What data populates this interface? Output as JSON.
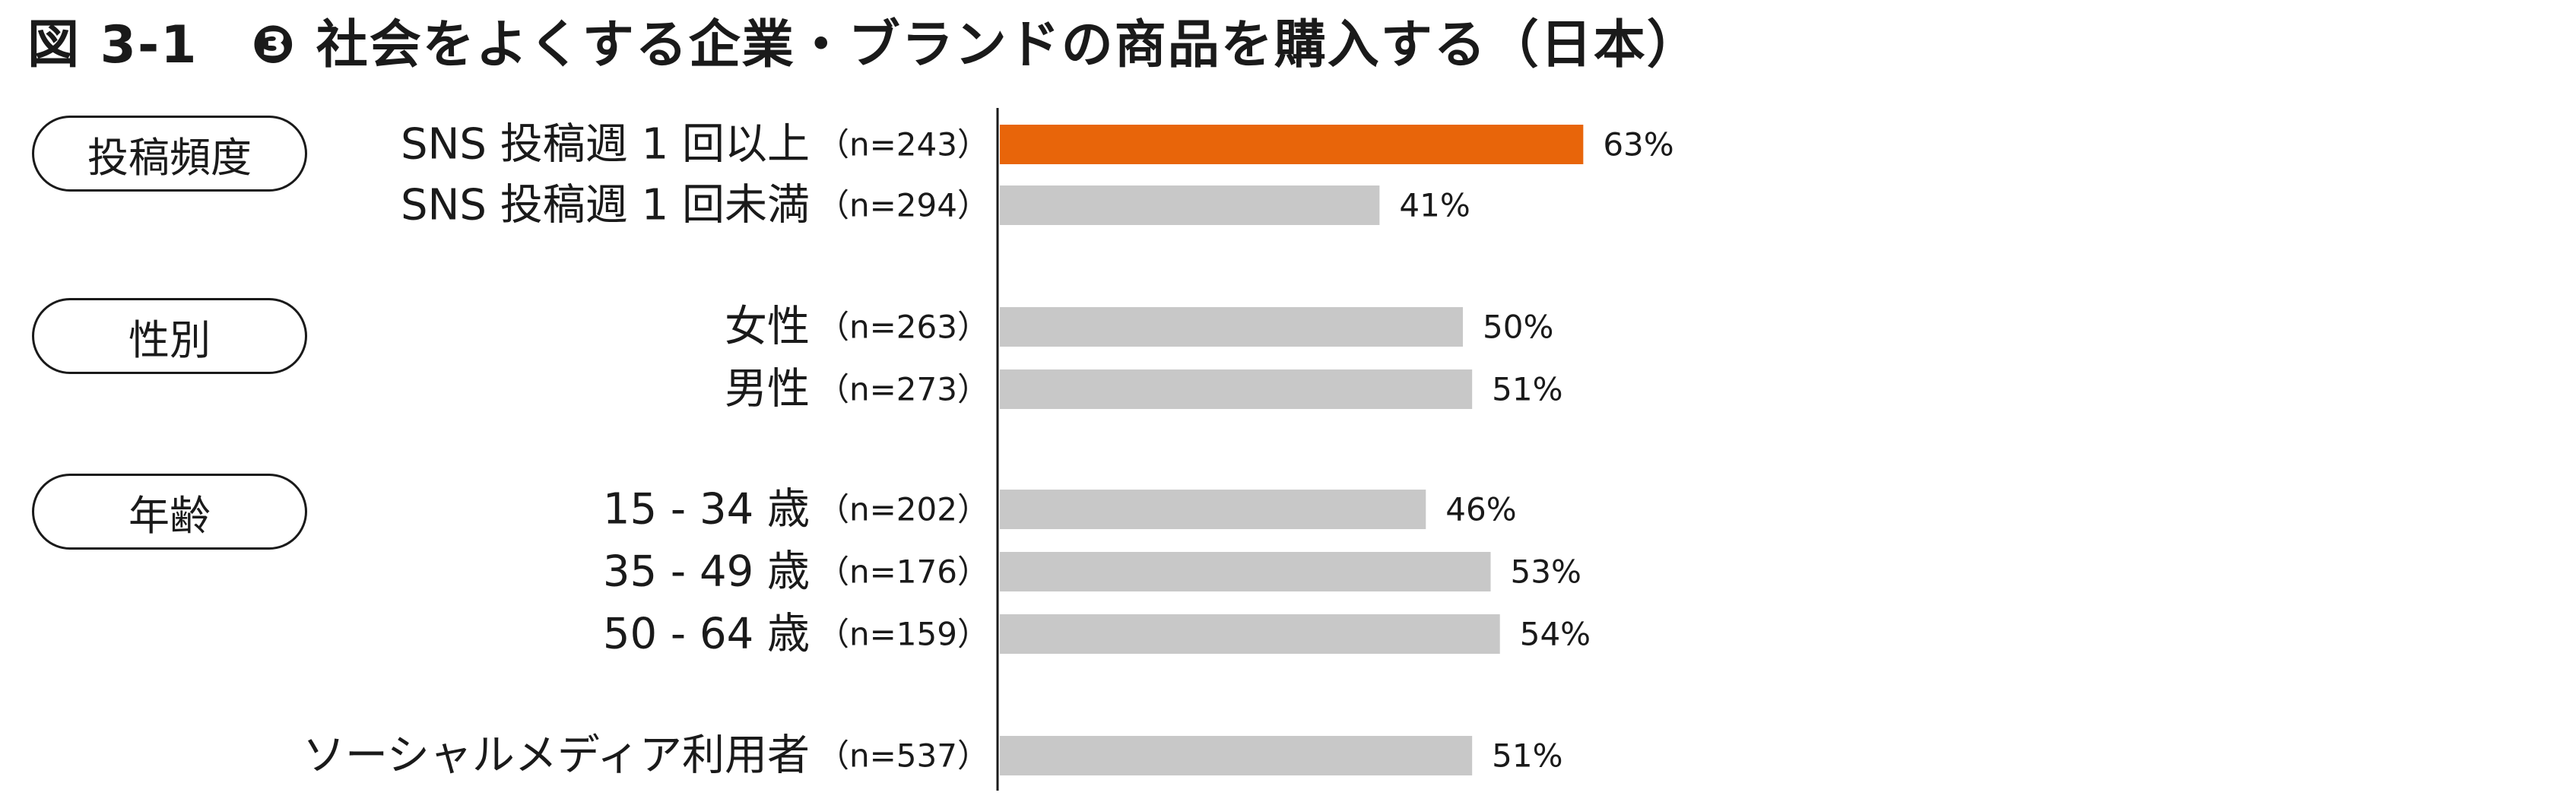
{
  "title": {
    "number": "図 3-1",
    "text": "❸ 社会をよくする企業・ブランドの商品を購入する（日本）"
  },
  "groups": [
    {
      "label": "投稿頻度"
    },
    {
      "label": "性別"
    },
    {
      "label": "年齢"
    }
  ],
  "colors": {
    "highlight": "#E8650A",
    "bar": "#C8C8C8",
    "axis": "#1a1a1a"
  },
  "chart_data": {
    "type": "bar",
    "orientation": "horizontal",
    "categories": [
      "SNS 投稿週 1 回以上",
      "SNS 投稿週 1 回未満",
      "女性",
      "男性",
      "15 - 34 歳",
      "35 - 49 歳",
      "50 - 64 歳",
      "ソーシャルメディア利用者"
    ],
    "sample_sizes": [
      "（n=243）",
      "（n=294）",
      "（n=263）",
      "（n=273）",
      "（n=202）",
      "（n=176）",
      "（n=159）",
      "（n=537）"
    ],
    "values": [
      63,
      41,
      50,
      51,
      46,
      53,
      54,
      51
    ],
    "value_labels": [
      "63%",
      "41%",
      "50%",
      "51%",
      "46%",
      "53%",
      "54%",
      "51%"
    ],
    "highlight_index": 0,
    "xlim": [
      0,
      100
    ],
    "grid": false,
    "legend": "none"
  }
}
